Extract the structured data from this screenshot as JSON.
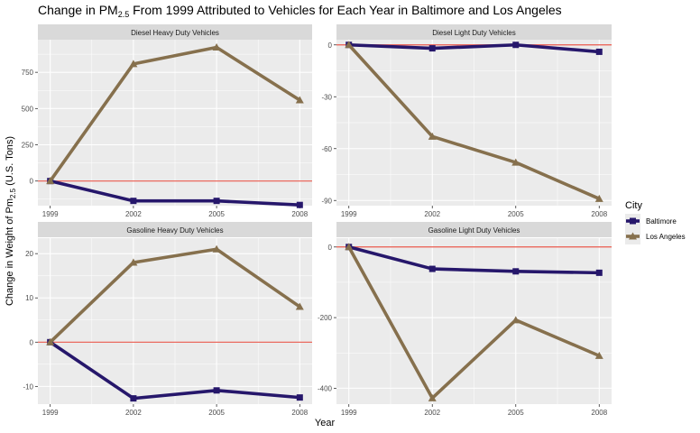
{
  "title": {
    "prefix": "Change in PM",
    "sub": "2.5",
    "suffix": " From 1999 Attributed to Vehicles for Each Year in Baltimore and Los Angeles"
  },
  "xlabel": "Year",
  "ylabel": {
    "prefix": "Change in Weight of Pm",
    "sub": "2.5",
    "suffix": " (U.S. Tons)"
  },
  "legend": {
    "title": "City",
    "position": "right"
  },
  "colors": {
    "Baltimore": "#26176b",
    "Los Angeles": "#86704d",
    "reference_line": "#e8574b",
    "panel_bg": "#ebebeb",
    "strip_bg": "#d9d9d9",
    "grid": "#ffffff"
  },
  "chart_data": {
    "type": "line",
    "x": [
      1999,
      2002,
      2005,
      2008
    ],
    "series_names": [
      "Baltimore",
      "Los Angeles"
    ],
    "markers": {
      "Baltimore": "square",
      "Los Angeles": "triangle"
    },
    "reference_line": 0,
    "panels": [
      {
        "title": "Diesel Heavy Duty Vehicles",
        "ylim": [
          -170,
          975
        ],
        "yticks": [
          0,
          250,
          500,
          750
        ],
        "series": [
          {
            "name": "Baltimore",
            "values": [
              0,
              -137,
              -137,
              -165
            ]
          },
          {
            "name": "Los Angeles",
            "values": [
              0,
              808,
              922,
              558
            ]
          }
        ]
      },
      {
        "title": "Diesel Light Duty Vehicles",
        "ylim": [
          -93,
          3
        ],
        "yticks": [
          0,
          -30,
          -60,
          -90
        ],
        "series": [
          {
            "name": "Baltimore",
            "values": [
              0,
              -2,
              0,
              -4
            ]
          },
          {
            "name": "Los Angeles",
            "values": [
              0,
              -53,
              -68,
              -89
            ]
          }
        ]
      },
      {
        "title": "Gasoline Heavy Duty Vehicles",
        "ylim": [
          -14,
          23.5
        ],
        "yticks": [
          -10,
          0,
          10,
          20
        ],
        "series": [
          {
            "name": "Baltimore",
            "values": [
              0,
              -12.7,
              -10.9,
              -12.5
            ]
          },
          {
            "name": "Los Angeles",
            "values": [
              0,
              18,
              21,
              8
            ]
          }
        ]
      },
      {
        "title": "Gasoline Light Duty Vehicles",
        "ylim": [
          -445,
          25
        ],
        "yticks": [
          0,
          -200,
          -400
        ],
        "series": [
          {
            "name": "Baltimore",
            "values": [
              0,
              -62,
              -69,
              -73
            ]
          },
          {
            "name": "Los Angeles",
            "values": [
              0,
              -428,
              -207,
              -308
            ]
          }
        ]
      }
    ]
  }
}
